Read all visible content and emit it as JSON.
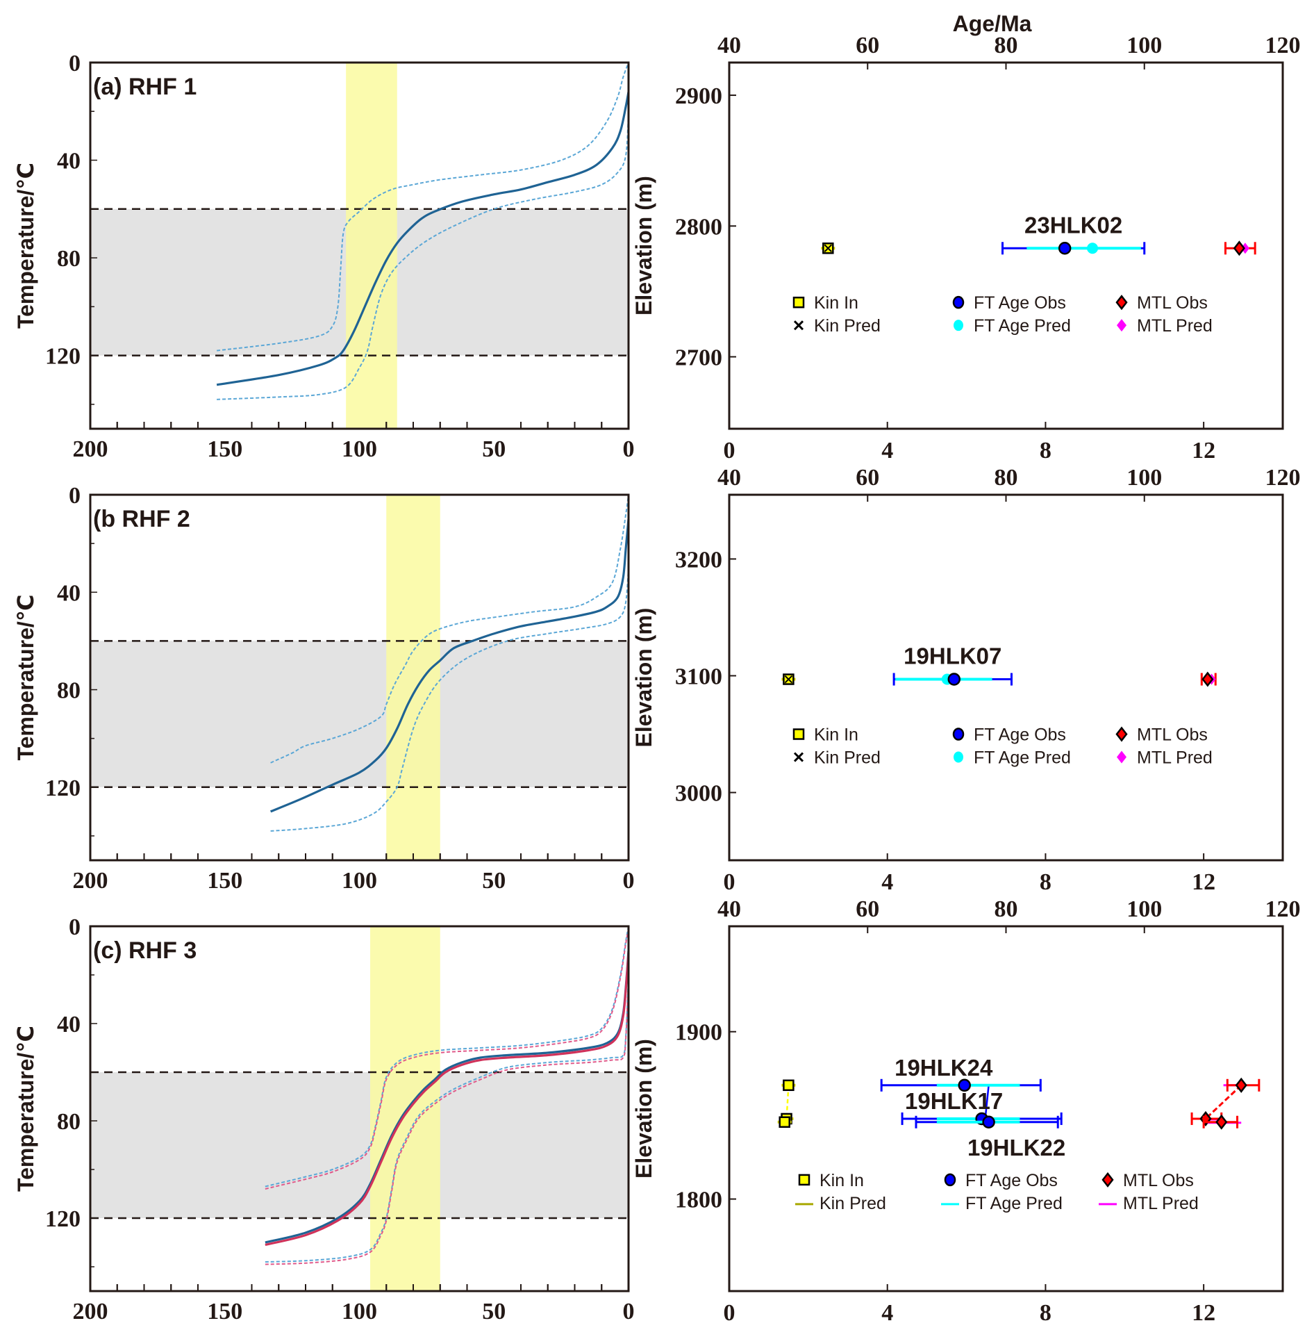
{
  "chart_data": [
    {
      "type": "line",
      "panel": "a",
      "title": "(a) RHF 1",
      "xlabel": "",
      "ylabel": "Temperature/℃",
      "xlim": [
        200,
        0
      ],
      "ylim": [
        0,
        150
      ],
      "x_reversed": true,
      "y_inverted": true,
      "xticks": [
        200,
        150,
        100,
        50,
        0
      ],
      "yticks": [
        0,
        40,
        80,
        120
      ],
      "pazt_band": {
        "from": 60,
        "to": 120,
        "color": "#e3e3e3"
      },
      "highlight_band": {
        "from": 105,
        "to": 86,
        "color": "#fafaa0"
      },
      "series": [
        {
          "name": "best-fit path",
          "style": "solid",
          "color": "#1f6394",
          "x": [
            153,
            130,
            115,
            109,
            106,
            102,
            98,
            94,
            90,
            86,
            82,
            77,
            72,
            62,
            50,
            40,
            30,
            20,
            12,
            6,
            3,
            1,
            0
          ],
          "y": [
            132,
            128,
            124,
            121,
            118,
            110,
            100,
            90,
            81,
            74,
            69,
            64,
            61,
            57,
            54,
            52,
            49,
            46,
            42,
            35,
            28,
            18,
            12
          ]
        },
        {
          "name": "envelope upper",
          "style": "dashed",
          "color": "#5ba7d6",
          "x": [
            153,
            130,
            115,
            110,
            108,
            107,
            106,
            104,
            100,
            95,
            88,
            80,
            70,
            55,
            40,
            25,
            15,
            8,
            4,
            2,
            0
          ],
          "y": [
            118,
            115,
            112,
            108,
            100,
            85,
            70,
            65,
            61,
            56,
            52,
            50,
            48,
            46,
            44,
            40,
            34,
            24,
            14,
            6,
            0
          ]
        },
        {
          "name": "envelope lower",
          "style": "dashed",
          "color": "#5ba7d6",
          "x": [
            153,
            130,
            115,
            105,
            100,
            97,
            95,
            92,
            88,
            82,
            75,
            65,
            50,
            35,
            20,
            10,
            4,
            1,
            0
          ],
          "y": [
            138,
            137,
            136,
            133,
            125,
            118,
            108,
            95,
            86,
            79,
            73,
            67,
            60,
            56,
            53,
            50,
            45,
            38,
            20
          ]
        }
      ]
    },
    {
      "type": "scatter",
      "panel": "a-right",
      "xlabel_top": "Age/Ma",
      "xlabel": "",
      "ylabel": "Elevation (m)",
      "xlim_bottom": [
        0,
        14
      ],
      "xlim_top": [
        40,
        120
      ],
      "ylim": [
        2645,
        2925
      ],
      "xticks_bottom": [
        0,
        4,
        8,
        12
      ],
      "xticks_top": [
        40,
        60,
        80,
        100,
        120
      ],
      "yticks": [
        2700,
        2800,
        2900
      ],
      "samples": [
        {
          "label": "23HLK02",
          "elevation": 2783,
          "kin_in": 2.5,
          "kin_pred": 2.5,
          "ft_age_obs": 88.5,
          "ft_age_obs_err": [
            79.5,
            100
          ],
          "ft_age_pred": 92.5,
          "ft_age_pred_range": [
            83,
            99.5
          ],
          "mtl_obs": 12.9,
          "mtl_obs_err": [
            12.55,
            13.3
          ],
          "mtl_pred": 13.05
        }
      ],
      "legend": [
        {
          "label": "Kin In",
          "marker": "square",
          "color": "#ffff00"
        },
        {
          "label": "Kin Pred",
          "marker": "x",
          "color": "#000000"
        },
        {
          "label": "FT Age Obs",
          "marker": "circle",
          "color": "#0000ff"
        },
        {
          "label": "FT Age Pred",
          "marker": "circle",
          "color": "#00ffff"
        },
        {
          "label": "MTL Obs",
          "marker": "diamond",
          "color": "#ff0000"
        },
        {
          "label": "MTL Pred",
          "marker": "diamond",
          "color": "#ff00ff"
        }
      ],
      "legend_position": "bottom"
    },
    {
      "type": "line",
      "panel": "b",
      "title": "(b RHF 2",
      "xlabel": "",
      "ylabel": "Temperature/℃",
      "xlim": [
        200,
        0
      ],
      "ylim": [
        0,
        150
      ],
      "x_reversed": true,
      "y_inverted": true,
      "xticks": [
        200,
        150,
        100,
        50,
        0
      ],
      "yticks": [
        0,
        40,
        80,
        120
      ],
      "pazt_band": {
        "from": 60,
        "to": 120,
        "color": "#e3e3e3"
      },
      "highlight_band": {
        "from": 90,
        "to": 70,
        "color": "#fafaa0"
      },
      "series": [
        {
          "name": "best-fit path",
          "style": "solid",
          "color": "#1f6394",
          "x": [
            133,
            122,
            110,
            100,
            94,
            90,
            86,
            82,
            78,
            74,
            70,
            65,
            58,
            50,
            40,
            30,
            20,
            12,
            8,
            4,
            2,
            1,
            0
          ],
          "y": [
            130,
            125,
            119,
            114,
            109,
            104,
            96,
            86,
            78,
            72,
            68,
            63,
            60,
            57,
            54,
            52,
            50,
            48,
            46,
            42,
            34,
            22,
            10
          ]
        },
        {
          "name": "envelope upper",
          "style": "dashed",
          "color": "#5ba7d6",
          "x": [
            133,
            125,
            120,
            110,
            100,
            92,
            90,
            87,
            83,
            80,
            75,
            70,
            60,
            48,
            35,
            20,
            12,
            6,
            3,
            1,
            0
          ],
          "y": [
            110,
            106,
            103,
            100,
            96,
            91,
            86,
            78,
            70,
            64,
            58,
            55,
            52,
            50,
            48,
            46,
            42,
            36,
            22,
            8,
            0
          ]
        },
        {
          "name": "envelope lower",
          "style": "dashed",
          "color": "#5ba7d6",
          "x": [
            133,
            120,
            105,
            95,
            90,
            86,
            84,
            80,
            76,
            70,
            60,
            45,
            30,
            18,
            8,
            3,
            1,
            0
          ],
          "y": [
            138,
            137,
            135,
            131,
            126,
            120,
            112,
            96,
            86,
            76,
            67,
            60,
            57,
            55,
            53,
            50,
            44,
            30
          ]
        }
      ]
    },
    {
      "type": "scatter",
      "panel": "b-right",
      "xlabel_top": "",
      "xlabel": "",
      "ylabel": "Elevation (m)",
      "xlim_bottom": [
        0,
        14
      ],
      "xlim_top": [
        40,
        120
      ],
      "ylim": [
        2942,
        3255
      ],
      "xticks_bottom": [
        0,
        4,
        8,
        12
      ],
      "xticks_top": [
        40,
        60,
        80,
        100,
        120
      ],
      "yticks": [
        3000,
        3100,
        3200
      ],
      "samples": [
        {
          "label": "19HLK07",
          "elevation": 3097,
          "kin_in": 1.5,
          "kin_pred": 1.5,
          "ft_age_obs": 72.5,
          "ft_age_obs_err": [
            63.8,
            80.8
          ],
          "ft_age_pred": 71.5,
          "ft_age_pred_range": [
            64,
            78
          ],
          "mtl_obs": 12.1,
          "mtl_obs_err": [
            11.95,
            12.3
          ],
          "mtl_pred": 12.2
        }
      ],
      "legend": [
        {
          "label": "Kin In",
          "marker": "square",
          "color": "#ffff00"
        },
        {
          "label": "Kin Pred",
          "marker": "x",
          "color": "#000000"
        },
        {
          "label": "FT Age Obs",
          "marker": "circle",
          "color": "#0000ff"
        },
        {
          "label": "FT Age Pred",
          "marker": "circle",
          "color": "#00ffff"
        },
        {
          "label": "MTL Obs",
          "marker": "diamond",
          "color": "#ff0000"
        },
        {
          "label": "MTL Pred",
          "marker": "diamond",
          "color": "#ff00ff"
        }
      ],
      "legend_position": "bottom"
    },
    {
      "type": "line",
      "panel": "c",
      "title": "(c) RHF 3",
      "xlabel": "",
      "ylabel": "Temperature/℃",
      "xlim": [
        200,
        0
      ],
      "ylim": [
        0,
        150
      ],
      "x_reversed": true,
      "y_inverted": true,
      "xticks": [
        200,
        150,
        100,
        50,
        0
      ],
      "yticks": [
        0,
        40,
        80,
        120
      ],
      "pazt_band": {
        "from": 60,
        "to": 120,
        "color": "#e3e3e3"
      },
      "highlight_band": {
        "from": 96,
        "to": 70,
        "color": "#fafaa0"
      },
      "series": [
        {
          "name": "best-fit path (blue)",
          "style": "solid",
          "color": "#1f6394",
          "x": [
            135,
            120,
            108,
            100,
            96,
            92,
            88,
            84,
            80,
            76,
            72,
            68,
            62,
            55,
            45,
            30,
            15,
            8,
            4,
            2,
            1,
            0
          ],
          "y": [
            130,
            126,
            120,
            113,
            106,
            96,
            86,
            78,
            72,
            67,
            63,
            59,
            56,
            54,
            53,
            52,
            50,
            48,
            44,
            36,
            25,
            10
          ]
        },
        {
          "name": "best-fit path (red)",
          "style": "solid",
          "color": "#d0325a",
          "x": [
            135,
            120,
            108,
            100,
            96,
            92,
            88,
            84,
            80,
            76,
            72,
            68,
            62,
            55,
            45,
            30,
            15,
            8,
            4,
            2,
            1,
            0
          ],
          "y": [
            131,
            127,
            121,
            114,
            107,
            97,
            87,
            79,
            73,
            68,
            64,
            60,
            57,
            55,
            54,
            53,
            51,
            49,
            45,
            37,
            26,
            11
          ]
        },
        {
          "name": "envelope upper (blue)",
          "style": "dashed",
          "color": "#5ba7d6",
          "x": [
            135,
            120,
            110,
            100,
            96,
            94,
            92,
            90,
            86,
            80,
            70,
            55,
            40,
            25,
            15,
            10,
            6,
            3,
            1,
            0
          ],
          "y": [
            107,
            103,
            100,
            95,
            90,
            82,
            72,
            62,
            56,
            53,
            51,
            50,
            49,
            47,
            45,
            42,
            34,
            20,
            6,
            0
          ]
        },
        {
          "name": "envelope upper (red)",
          "style": "dashed",
          "color": "#e05a8a",
          "x": [
            135,
            120,
            110,
            100,
            96,
            94,
            92,
            90,
            86,
            80,
            70,
            55,
            40,
            25,
            15,
            10,
            6,
            3,
            1,
            0
          ],
          "y": [
            108,
            104,
            101,
            96,
            91,
            83,
            73,
            63,
            57,
            54,
            52,
            51,
            50,
            48,
            46,
            43,
            35,
            21,
            7,
            1
          ]
        },
        {
          "name": "envelope lower (blue)",
          "style": "dashed",
          "color": "#5ba7d6",
          "x": [
            135,
            120,
            105,
            96,
            92,
            90,
            88,
            86,
            82,
            78,
            72,
            65,
            55,
            45,
            30,
            15,
            6,
            2,
            1,
            0
          ],
          "y": [
            138,
            137.5,
            136,
            133,
            126,
            120,
            108,
            96,
            86,
            78,
            72,
            67,
            62,
            58,
            56,
            55,
            54,
            53,
            45,
            20
          ]
        },
        {
          "name": "envelope lower (red)",
          "style": "dashed",
          "color": "#e05a8a",
          "x": [
            135,
            120,
            105,
            96,
            92,
            90,
            88,
            86,
            82,
            78,
            72,
            65,
            55,
            45,
            30,
            15,
            6,
            2,
            1,
            0
          ],
          "y": [
            139,
            138.5,
            137,
            134,
            127,
            121,
            109,
            97,
            87,
            79,
            73,
            68,
            63,
            59,
            57,
            56,
            55,
            54,
            46,
            21
          ]
        }
      ]
    },
    {
      "type": "scatter",
      "panel": "c-right",
      "xlabel_top": "",
      "xlabel": "",
      "ylabel": "Elevation (m)",
      "xlim_bottom": [
        0,
        14
      ],
      "xlim_top": [
        40,
        120
      ],
      "ylim": [
        1745,
        1963
      ],
      "xticks_bottom": [
        0,
        4,
        8,
        12
      ],
      "xticks_top": [
        40,
        60,
        80,
        100,
        120
      ],
      "yticks": [
        1800,
        1900
      ],
      "samples": [
        {
          "label": "19HLK24",
          "elevation": 1868,
          "kin_in": 1.5,
          "kin_pred": 1.5,
          "ft_age_obs": 74,
          "ft_age_obs_err": [
            62,
            85
          ],
          "ft_age_pred": 77.5,
          "ft_age_pred_range": [
            70,
            82
          ],
          "mtl_obs": 12.95,
          "mtl_obs_err": [
            12.6,
            13.4
          ],
          "mtl_pred": 12.7,
          "mtl_pred_range": [
            12.5,
            12.95
          ]
        },
        {
          "label": "19HLK17",
          "elevation": 1848,
          "kin_in": 1.45,
          "kin_pred": 1.45,
          "ft_age_obs": 76.5,
          "ft_age_obs_err": [
            65,
            88
          ],
          "ft_age_pred": 77,
          "ft_age_pred_range": [
            70,
            82
          ],
          "mtl_obs": 12.05,
          "mtl_obs_err": [
            11.7,
            12.45
          ],
          "mtl_pred": 12.15,
          "mtl_pred_range": [
            12.0,
            12.5
          ]
        },
        {
          "label": "19HLK22",
          "elevation": 1846,
          "kin_in": 1.4,
          "kin_pred": 1.4,
          "ft_age_obs": 77.5,
          "ft_age_obs_err": [
            67,
            87.5
          ],
          "ft_age_pred": 77,
          "ft_age_pred_range": [
            70,
            82
          ],
          "mtl_obs": 12.45,
          "mtl_obs_err": [
            12.0,
            12.85
          ],
          "mtl_pred": 12.5,
          "mtl_pred_range": [
            12.1,
            12.95
          ]
        }
      ],
      "legend": [
        {
          "label": "Kin In",
          "marker": "square",
          "color": "#ffff00"
        },
        {
          "label": "Kin Pred",
          "marker": "line",
          "color": "#a8a800"
        },
        {
          "label": "FT Age Obs",
          "marker": "circle",
          "color": "#0000ff"
        },
        {
          "label": "FT Age Pred",
          "marker": "line",
          "color": "#00ffff"
        },
        {
          "label": "MTL Obs",
          "marker": "diamond",
          "color": "#ff0000"
        },
        {
          "label": "MTL Pred",
          "marker": "line",
          "color": "#ff00ff"
        }
      ],
      "legend_position": "bottom"
    }
  ]
}
